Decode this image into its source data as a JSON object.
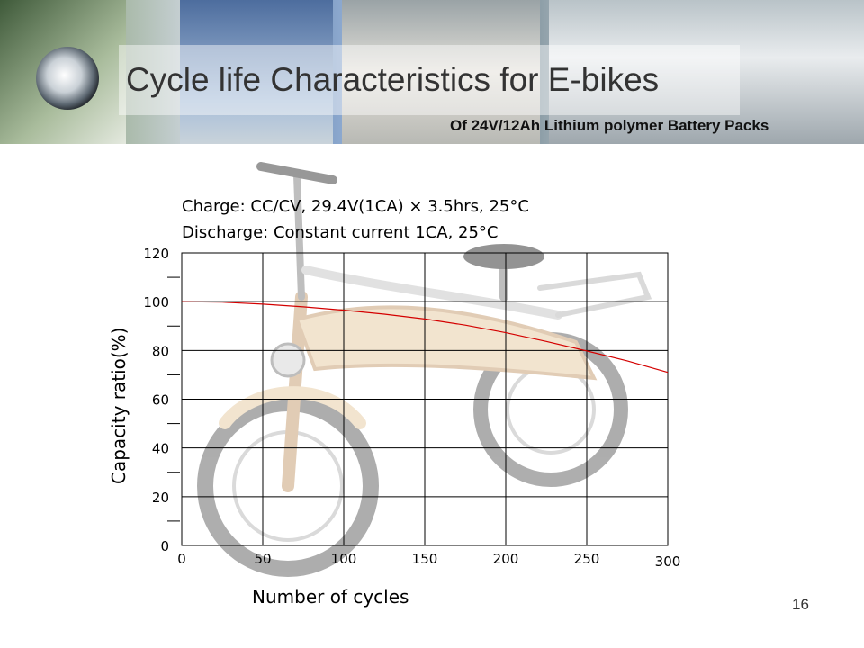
{
  "slide": {
    "title": "Cycle life Characteristics for E-bikes",
    "subtitle": "Of 24V/12Ah Lithium polymer Battery Packs",
    "page_number": "16"
  },
  "chart_data": {
    "type": "line",
    "title": "",
    "conditions": [
      "Charge: CC/CV, 29.4V(1CA) × 3.5hrs, 25°C",
      "Discharge: Constant current 1CA, 25°C"
    ],
    "xlabel": "Number of cycles",
    "ylabel": "Capacity ratio(%)",
    "xlim": [
      0,
      300
    ],
    "ylim": [
      0,
      120
    ],
    "xticks": [
      "0",
      "50",
      "100",
      "150",
      "200",
      "250",
      "300"
    ],
    "yticks": [
      "0",
      "20",
      "40",
      "60",
      "80",
      "100",
      "120"
    ],
    "grid": true,
    "series": [
      {
        "color": "#d40000",
        "x": [
          0,
          25,
          50,
          75,
          100,
          125,
          150,
          175,
          200,
          225,
          250,
          275,
          300
        ],
        "y": [
          100,
          99.8,
          99.0,
          97.9,
          96.5,
          94.9,
          92.9,
          90.4,
          87.3,
          83.7,
          79.8,
          75.7,
          71.0
        ]
      }
    ]
  }
}
